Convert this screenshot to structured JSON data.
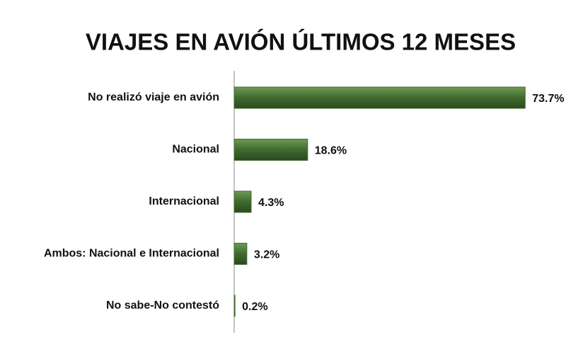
{
  "chart_data": {
    "type": "bar",
    "orientation": "horizontal",
    "title": "VIAJES EN AVIÓN ÚLTIMOS 12 MESES",
    "categories": [
      "No realizó viaje en avión",
      "Nacional",
      "Internacional",
      "Ambos: Nacional e Internacional",
      "No sabe-No contestó"
    ],
    "values": [
      73.7,
      18.6,
      4.3,
      3.2,
      0.2
    ],
    "value_labels": [
      "73.7%",
      "18.6%",
      "4.3%",
      "3.2%",
      "0.2%"
    ],
    "color": "#3f6a2e"
  }
}
